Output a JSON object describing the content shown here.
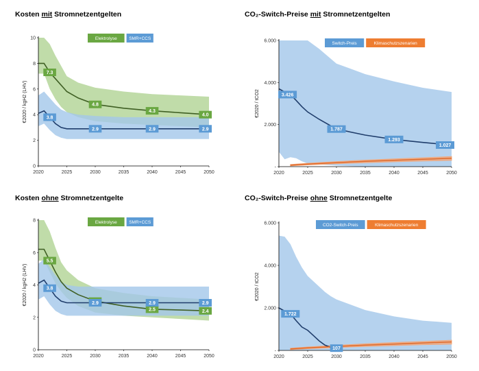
{
  "titles": [
    {
      "pre": "Kosten ",
      "u": "mit",
      "post": " Stromnetzentgelten"
    },
    {
      "pre": "CO₂-Switch-Preise ",
      "u": "mit",
      "post": " Stromnetzentgelten"
    },
    {
      "pre": "Kosten ",
      "u": "ohne",
      "post": " Stromnetzentgelte"
    },
    {
      "pre": "CO₂-Switch-Preise ",
      "u": "ohne",
      "post": " Stromnetzentgelte"
    }
  ],
  "colors": {
    "green_band": "#b5d69a",
    "green_line": "#3f5f24",
    "green_label": "#6aa742",
    "blue_band": "#a3c7ea",
    "blue_line": "#1f3d6b",
    "blue_label": "#5c9bd5",
    "orange_band": "#f2a77a",
    "orange_line": "#e06a2a",
    "orange_label": "#ee7d31",
    "axis": "#000000"
  },
  "chart_data": [
    {
      "type": "area",
      "ylabel": "€2020 / kgH2 (LHV)",
      "x_ticks": [
        "2020",
        "2025",
        "2030",
        "2035",
        "2040",
        "2045",
        "2050"
      ],
      "y_ticks": [
        "0",
        "2",
        "4",
        "6",
        "8",
        "10"
      ],
      "xlim": [
        2020,
        2050
      ],
      "ylim": [
        0,
        10
      ],
      "legend": [
        "Elektrolyse",
        "SMR+CCS"
      ],
      "series": [
        {
          "name": "Elektrolyse",
          "color_key": "green",
          "x": [
            2020,
            2021,
            2022,
            2023,
            2024,
            2025,
            2027,
            2030,
            2035,
            2040,
            2045,
            2050
          ],
          "values": [
            8.0,
            8.0,
            7.3,
            6.8,
            6.3,
            5.8,
            5.3,
            4.8,
            4.5,
            4.3,
            4.15,
            4.0
          ],
          "low": [
            7.2,
            7.2,
            6.0,
            5.2,
            4.6,
            4.2,
            3.8,
            3.5,
            3.3,
            3.2,
            3.1,
            3.0
          ],
          "high": [
            10.0,
            10.0,
            9.5,
            8.6,
            7.8,
            7.0,
            6.5,
            6.1,
            5.8,
            5.6,
            5.5,
            5.4
          ],
          "labels": [
            {
              "x": 2022,
              "y": 7.3,
              "text": "7.3"
            },
            {
              "x": 2030,
              "y": 4.8,
              "text": "4.8"
            },
            {
              "x": 2040,
              "y": 4.3,
              "text": "4.3"
            },
            {
              "x": 2050,
              "y": 4.0,
              "text": "4.0"
            }
          ]
        },
        {
          "name": "SMR+CCS",
          "color_key": "blue",
          "x": [
            2020,
            2021,
            2022,
            2023,
            2024,
            2025,
            2027,
            2030,
            2035,
            2040,
            2045,
            2050
          ],
          "values": [
            4.1,
            4.3,
            3.8,
            3.3,
            3.0,
            2.9,
            2.9,
            2.9,
            2.9,
            2.9,
            2.9,
            2.9
          ],
          "low": [
            3.1,
            3.3,
            2.8,
            2.4,
            2.2,
            2.1,
            2.1,
            2.1,
            2.1,
            2.1,
            2.1,
            2.1
          ],
          "high": [
            5.5,
            5.8,
            5.3,
            4.8,
            4.4,
            4.2,
            4.0,
            3.9,
            3.8,
            3.8,
            3.8,
            3.8
          ],
          "labels": [
            {
              "x": 2022,
              "y": 3.8,
              "text": "3.8"
            },
            {
              "x": 2030,
              "y": 2.9,
              "text": "2.9"
            },
            {
              "x": 2040,
              "y": 2.9,
              "text": "2.9"
            },
            {
              "x": 2050,
              "y": 2.9,
              "text": "2.9"
            }
          ]
        }
      ]
    },
    {
      "type": "area",
      "ylabel": "€2020 / tCO2",
      "x_ticks": [
        "2020",
        "2025",
        "2030",
        "2035",
        "2040",
        "2045",
        "2050"
      ],
      "y_ticks": [
        "-",
        "2.000",
        "4.000",
        "6.000"
      ],
      "xlim": [
        2020,
        2050
      ],
      "ylim": [
        0,
        6000
      ],
      "legend": [
        "Switch-Preis",
        "Klimaschutzszenarien"
      ],
      "series": [
        {
          "name": "Switch-Preis",
          "color_key": "blue",
          "x": [
            2020,
            2021,
            2022,
            2023,
            2024,
            2025,
            2027,
            2030,
            2035,
            2040,
            2045,
            2050
          ],
          "values": [
            3700,
            3550,
            3426,
            3150,
            2850,
            2600,
            2250,
            1787,
            1500,
            1293,
            1150,
            1027
          ],
          "low": [
            700,
            350,
            450,
            400,
            250,
            150,
            100,
            50,
            0,
            0,
            0,
            0
          ],
          "high": [
            6000,
            6000,
            6000,
            6000,
            6000,
            6000,
            5600,
            4900,
            4400,
            4050,
            3750,
            3550
          ],
          "labels": [
            {
              "x": 2021.5,
              "y": 3426,
              "text": "3.426"
            },
            {
              "x": 2030,
              "y": 1787,
              "text": "1.787"
            },
            {
              "x": 2040,
              "y": 1293,
              "text": "1.293"
            },
            {
              "x": 2049,
              "y": 1027,
              "text": "1.027"
            }
          ]
        },
        {
          "name": "Klimaschutzszenarien",
          "color_key": "orange",
          "x": [
            2022,
            2025,
            2030,
            2035,
            2040,
            2045,
            2050
          ],
          "values": [
            70,
            120,
            190,
            250,
            300,
            350,
            400
          ],
          "low": [
            40,
            80,
            140,
            190,
            230,
            270,
            300
          ],
          "high": [
            100,
            160,
            240,
            310,
            370,
            420,
            480
          ],
          "labels": []
        }
      ]
    },
    {
      "type": "area",
      "ylabel": "€2020 / kgH2 (LHV)",
      "x_ticks": [
        "2020",
        "2025",
        "2030",
        "2035",
        "2040",
        "2045",
        "2050"
      ],
      "y_ticks": [
        "0",
        "2",
        "4",
        "6",
        "8"
      ],
      "xlim": [
        2020,
        2050
      ],
      "ylim": [
        0,
        8
      ],
      "legend": [
        "Elektrolyse",
        "SMR+CCS"
      ],
      "series": [
        {
          "name": "Elektrolyse",
          "color_key": "green",
          "x": [
            2020,
            2021,
            2022,
            2023,
            2024,
            2025,
            2027,
            2030,
            2035,
            2040,
            2045,
            2050
          ],
          "values": [
            6.2,
            6.2,
            5.5,
            4.8,
            4.2,
            3.8,
            3.4,
            3.0,
            2.7,
            2.5,
            2.45,
            2.4
          ],
          "low": [
            5.5,
            5.5,
            4.8,
            4.1,
            3.6,
            3.2,
            2.7,
            2.3,
            2.1,
            2.0,
            1.9,
            1.8
          ],
          "high": [
            8.0,
            8.0,
            7.3,
            6.3,
            5.4,
            4.9,
            4.3,
            3.8,
            3.5,
            3.3,
            3.2,
            3.1
          ],
          "labels": [
            {
              "x": 2022,
              "y": 5.5,
              "text": "5.5"
            },
            {
              "x": 2030,
              "y": 3.0,
              "text": "3.0"
            },
            {
              "x": 2040,
              "y": 2.5,
              "text": "2.5"
            },
            {
              "x": 2050,
              "y": 2.4,
              "text": "2.4"
            }
          ]
        },
        {
          "name": "SMR+CCS",
          "color_key": "blue",
          "x": [
            2020,
            2021,
            2022,
            2023,
            2024,
            2025,
            2027,
            2030,
            2035,
            2040,
            2045,
            2050
          ],
          "values": [
            4.1,
            4.3,
            3.8,
            3.3,
            3.0,
            2.9,
            2.9,
            2.9,
            2.9,
            2.9,
            2.9,
            2.9
          ],
          "low": [
            3.1,
            3.3,
            2.8,
            2.4,
            2.2,
            2.1,
            2.1,
            2.1,
            2.1,
            2.1,
            2.1,
            2.1
          ],
          "high": [
            5.3,
            5.6,
            5.1,
            4.6,
            4.2,
            4.0,
            3.9,
            3.9,
            3.9,
            3.9,
            3.9,
            3.9
          ],
          "labels": [
            {
              "x": 2022,
              "y": 3.8,
              "text": "3.8"
            },
            {
              "x": 2030,
              "y": 2.9,
              "text": "2.9"
            },
            {
              "x": 2040,
              "y": 2.9,
              "text": "2.9"
            },
            {
              "x": 2050,
              "y": 2.9,
              "text": "2.9"
            }
          ]
        }
      ]
    },
    {
      "type": "area",
      "ylabel": "€2020 / tCO2",
      "x_ticks": [
        "2020",
        "2025",
        "2030",
        "2035",
        "2040",
        "2045",
        "2050"
      ],
      "y_ticks": [
        "-",
        "2.000",
        "4.000",
        "6.000"
      ],
      "xlim": [
        2020,
        2050
      ],
      "ylim": [
        0,
        6000
      ],
      "legend": [
        "CO2-Switch-Preis",
        "Klimaschutzszenarien"
      ],
      "series": [
        {
          "name": "CO2-Switch-Preis",
          "color_key": "blue",
          "x": [
            2020,
            2021,
            2022,
            2023,
            2024,
            2025,
            2026,
            2027,
            2028,
            2029,
            2030
          ],
          "values": [
            2000,
            1850,
            1722,
            1400,
            1100,
            950,
            700,
            450,
            250,
            150,
            107
          ],
          "low": [
            0,
            0,
            0,
            0,
            0,
            0,
            0,
            0,
            0,
            0,
            0
          ],
          "high": [
            5400,
            5350,
            5000,
            4400,
            3900,
            3500,
            3250,
            3000,
            2750,
            2550,
            2400
          ],
          "labels": [
            {
              "x": 2022,
              "y": 1722,
              "text": "1.722"
            },
            {
              "x": 2030,
              "y": 107,
              "text": "107"
            }
          ]
        },
        {
          "name": "upper-range",
          "color_key": "blue",
          "x": [
            2030,
            2035,
            2040,
            2045,
            2050
          ],
          "values": [
            null,
            null,
            null,
            null,
            null
          ],
          "low": [
            0,
            0,
            0,
            0,
            0
          ],
          "high": [
            2400,
            1900,
            1600,
            1400,
            1300
          ],
          "labels": []
        },
        {
          "name": "Klimaschutzszenarien",
          "color_key": "orange",
          "x": [
            2022,
            2025,
            2030,
            2035,
            2040,
            2045,
            2050
          ],
          "values": [
            70,
            120,
            190,
            250,
            300,
            350,
            400
          ],
          "low": [
            40,
            80,
            140,
            190,
            230,
            270,
            300
          ],
          "high": [
            100,
            160,
            240,
            310,
            370,
            420,
            480
          ],
          "labels": []
        }
      ]
    }
  ]
}
